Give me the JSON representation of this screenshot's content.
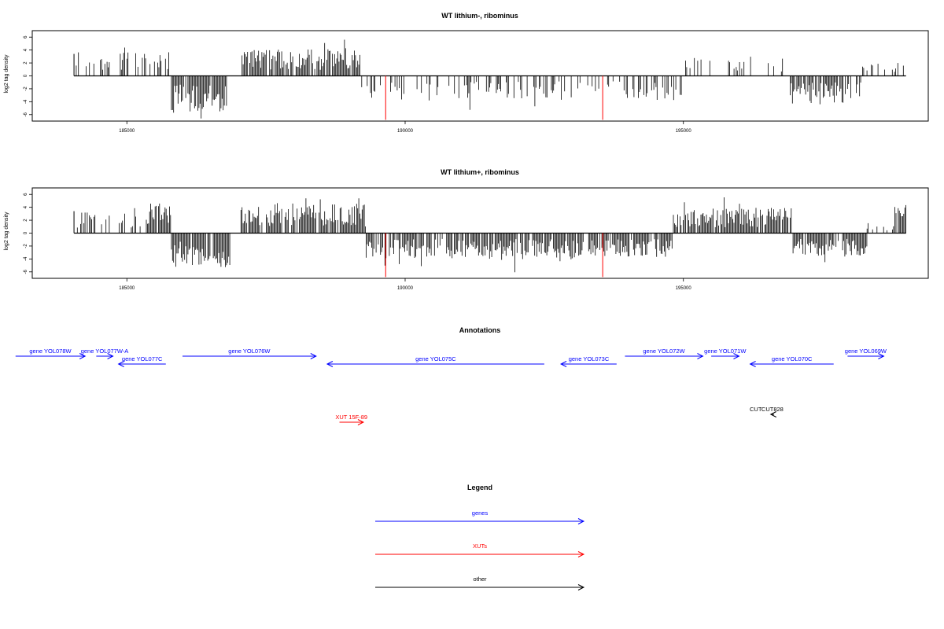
{
  "colors": {
    "gene": "#0000ff",
    "xut": "#ff0000",
    "other": "#000000",
    "marker": "#ff0000",
    "bars": "#000000"
  },
  "charts": [
    {
      "type": "bar",
      "title": "WT lithium-, ribominus",
      "ylabel": "log2 tag density",
      "xlim": [
        183300,
        199400
      ],
      "ylim": [
        -7,
        7
      ],
      "xticks": [
        185000,
        190000,
        195000
      ],
      "yticks": [
        -6,
        -4,
        -2,
        0,
        2,
        4,
        6
      ],
      "xrange": [
        184050,
        199000
      ],
      "red_markers": [
        189650,
        193550
      ],
      "segments": [
        [
          184050,
          185800,
          "plus",
          3.2,
          0.25
        ],
        [
          185800,
          186800,
          "minus",
          5.0,
          0.9
        ],
        [
          186800,
          187050,
          "none",
          0,
          0
        ],
        [
          187050,
          189200,
          "plus",
          3.6,
          0.85
        ],
        [
          189200,
          189600,
          "minus",
          2.4,
          0.35
        ],
        [
          189600,
          195000,
          "minus",
          3.4,
          0.35
        ],
        [
          195000,
          196900,
          "plus",
          2.6,
          0.18
        ],
        [
          196900,
          198200,
          "minus",
          3.8,
          0.7
        ],
        [
          198200,
          199000,
          "plus",
          2.2,
          0.25
        ]
      ]
    },
    {
      "type": "bar",
      "title": "WT lithium+, ribominus",
      "ylabel": "log2 tag density",
      "xlim": [
        183300,
        199400
      ],
      "ylim": [
        -7,
        7
      ],
      "xticks": [
        185000,
        190000,
        195000
      ],
      "yticks": [
        -6,
        -4,
        -2,
        0,
        2,
        4,
        6
      ],
      "xrange": [
        184050,
        199000
      ],
      "red_markers": [
        189650,
        193550
      ],
      "segments": [
        [
          184050,
          185350,
          "plus",
          2.8,
          0.35
        ],
        [
          185350,
          185800,
          "plus",
          4.2,
          0.9
        ],
        [
          185800,
          186850,
          "minus",
          4.6,
          0.85
        ],
        [
          186850,
          187050,
          "none",
          0,
          0
        ],
        [
          187050,
          189300,
          "plus",
          4.0,
          0.9
        ],
        [
          189300,
          191200,
          "minus",
          3.4,
          0.75
        ],
        [
          191200,
          193550,
          "minus",
          3.6,
          0.85
        ],
        [
          193550,
          194800,
          "minus",
          3.2,
          0.8
        ],
        [
          194800,
          196950,
          "plus",
          3.4,
          0.9
        ],
        [
          196950,
          198300,
          "minus",
          3.2,
          0.85
        ],
        [
          198300,
          198800,
          "plus",
          1.4,
          0.2
        ],
        [
          198800,
          199000,
          "plus",
          4.0,
          0.9
        ]
      ]
    }
  ],
  "annotations": {
    "title": "Annotations",
    "features": [
      {
        "label": "gene YOL078W",
        "type": "gene",
        "strand": "+",
        "start": 183000,
        "end": 184250,
        "row": 0
      },
      {
        "label": "gene YOL077W-A",
        "type": "gene",
        "strand": "+",
        "start": 184450,
        "end": 184750,
        "row": 0
      },
      {
        "label": "gene YOL077C",
        "type": "gene",
        "strand": "-",
        "start": 184850,
        "end": 185700,
        "row": 1
      },
      {
        "label": "gene YOL076W",
        "type": "gene",
        "strand": "+",
        "start": 186000,
        "end": 188400,
        "row": 0
      },
      {
        "label": "gene YOL075C",
        "type": "gene",
        "strand": "-",
        "start": 188600,
        "end": 192500,
        "row": 1
      },
      {
        "label": "gene YOL073C",
        "type": "gene",
        "strand": "-",
        "start": 192800,
        "end": 193800,
        "row": 1
      },
      {
        "label": "gene YOL072W",
        "type": "gene",
        "strand": "+",
        "start": 193950,
        "end": 195350,
        "row": 0
      },
      {
        "label": "gene YOL071W",
        "type": "gene",
        "strand": "+",
        "start": 195500,
        "end": 196000,
        "row": 0
      },
      {
        "label": "gene YOL070C",
        "type": "gene",
        "strand": "-",
        "start": 196200,
        "end": 197700,
        "row": 1
      },
      {
        "label": "gene YOL069W",
        "type": "gene",
        "strand": "+",
        "start": 197950,
        "end": 198600,
        "row": 0
      },
      {
        "label": "XUT 15F-89",
        "type": "xut",
        "strand": "+",
        "start": 188820,
        "end": 189250,
        "row": 2
      },
      {
        "label": "CUT",
        "type": "other",
        "strand": "",
        "start": 196300,
        "end": 196300,
        "row": 3
      },
      {
        "label": "CUT828",
        "type": "other",
        "strand": "-",
        "start": 196570,
        "end": 196630,
        "row": 3
      }
    ]
  },
  "legend": {
    "title": "Legend",
    "items": [
      {
        "label": "genes",
        "type": "gene"
      },
      {
        "label": "XUTs",
        "type": "xut"
      },
      {
        "label": "other",
        "type": "other"
      }
    ]
  }
}
